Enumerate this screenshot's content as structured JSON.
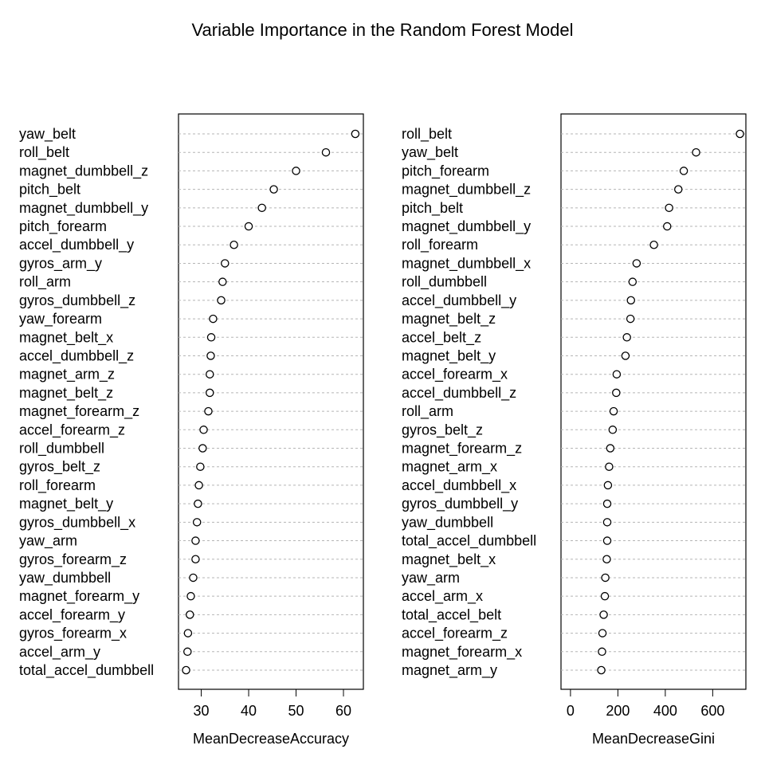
{
  "title": "Variable Importance in the Random Forest Model",
  "chart_data": [
    {
      "type": "scatter",
      "style": "dotchart",
      "xlabel": "MeanDecreaseAccuracy",
      "xlim": [
        25.2,
        64.2
      ],
      "xticks": [
        30,
        40,
        50,
        60
      ],
      "categories": [
        "yaw_belt",
        "roll_belt",
        "magnet_dumbbell_z",
        "pitch_belt",
        "magnet_dumbbell_y",
        "pitch_forearm",
        "accel_dumbbell_y",
        "gyros_arm_y",
        "roll_arm",
        "gyros_dumbbell_z",
        "yaw_forearm",
        "magnet_belt_x",
        "accel_dumbbell_z",
        "magnet_arm_z",
        "magnet_belt_z",
        "magnet_forearm_z",
        "accel_forearm_z",
        "roll_dumbbell",
        "gyros_belt_z",
        "roll_forearm",
        "magnet_belt_y",
        "gyros_dumbbell_x",
        "yaw_arm",
        "gyros_forearm_z",
        "yaw_dumbbell",
        "magnet_forearm_y",
        "accel_forearm_y",
        "gyros_forearm_x",
        "accel_arm_y",
        "total_accel_dumbbell"
      ],
      "values": [
        62.5,
        56.3,
        50.0,
        45.3,
        42.8,
        40.0,
        36.9,
        35.0,
        34.5,
        34.2,
        32.5,
        32.1,
        32.0,
        31.8,
        31.8,
        31.5,
        30.5,
        30.3,
        29.8,
        29.5,
        29.3,
        29.1,
        28.8,
        28.8,
        28.3,
        27.8,
        27.6,
        27.2,
        27.1,
        26.8
      ],
      "grid": "dotted guide lines"
    },
    {
      "type": "scatter",
      "style": "dotchart",
      "xlabel": "MeanDecreaseGini",
      "xlim": [
        -40,
        740
      ],
      "xticks": [
        0,
        200,
        400,
        600
      ],
      "categories": [
        "roll_belt",
        "yaw_belt",
        "pitch_forearm",
        "magnet_dumbbell_z",
        "pitch_belt",
        "magnet_dumbbell_y",
        "roll_forearm",
        "magnet_dumbbell_x",
        "roll_dumbbell",
        "accel_dumbbell_y",
        "magnet_belt_z",
        "accel_belt_z",
        "magnet_belt_y",
        "accel_forearm_x",
        "accel_dumbbell_z",
        "roll_arm",
        "gyros_belt_z",
        "magnet_forearm_z",
        "magnet_arm_x",
        "accel_dumbbell_x",
        "gyros_dumbbell_y",
        "yaw_dumbbell",
        "total_accel_dumbbell",
        "magnet_belt_x",
        "yaw_arm",
        "accel_arm_x",
        "total_accel_belt",
        "accel_forearm_z",
        "magnet_forearm_x",
        "magnet_arm_y"
      ],
      "values": [
        715,
        530,
        478,
        455,
        416,
        408,
        352,
        279,
        262,
        255,
        253,
        238,
        232,
        195,
        193,
        182,
        178,
        168,
        163,
        158,
        155,
        155,
        155,
        153,
        147,
        145,
        140,
        135,
        133,
        130
      ],
      "grid": "dotted guide lines"
    }
  ]
}
